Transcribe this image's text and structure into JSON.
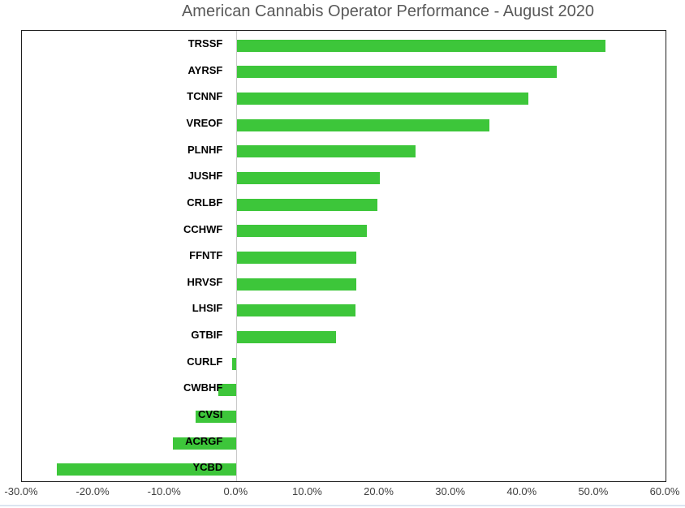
{
  "title": "American Cannabis Operator Performance - August 2020",
  "chart_data": {
    "type": "bar",
    "orientation": "horizontal",
    "title": "American Cannabis Operator Performance - August 2020",
    "xlabel": "",
    "ylabel": "",
    "categories": [
      "TRSSF",
      "AYRSF",
      "TCNNF",
      "VREOF",
      "PLNHF",
      "JUSHF",
      "CRLBF",
      "CCHWF",
      "FFNTF",
      "HRVSF",
      "LHSIF",
      "GTBIF",
      "CURLF",
      "CWBHF",
      "CVSI",
      "ACRGF",
      "YCBD"
    ],
    "values": [
      51.5,
      44.7,
      40.7,
      35.3,
      24.9,
      19.9,
      19.6,
      18.1,
      16.7,
      16.6,
      16.5,
      13.8,
      -0.6,
      -2.5,
      -5.7,
      -8.9,
      -25.1
    ],
    "value_unit": "percent",
    "xlim": [
      -30,
      60
    ],
    "x_ticks": [
      "-30.0%",
      "-20.0%",
      "-10.0%",
      "0.0%",
      "10.0%",
      "20.0%",
      "30.0%",
      "40.0%",
      "50.0%",
      "60.0%"
    ],
    "grid": false,
    "legend": false,
    "bar_color": "#3dc63a",
    "title_color": "#595959",
    "tick_label_color": "#404040",
    "category_label_color": "#000000",
    "axis_line_color": "#c9c9c9",
    "plot_border_color": "#1f1f1f"
  }
}
